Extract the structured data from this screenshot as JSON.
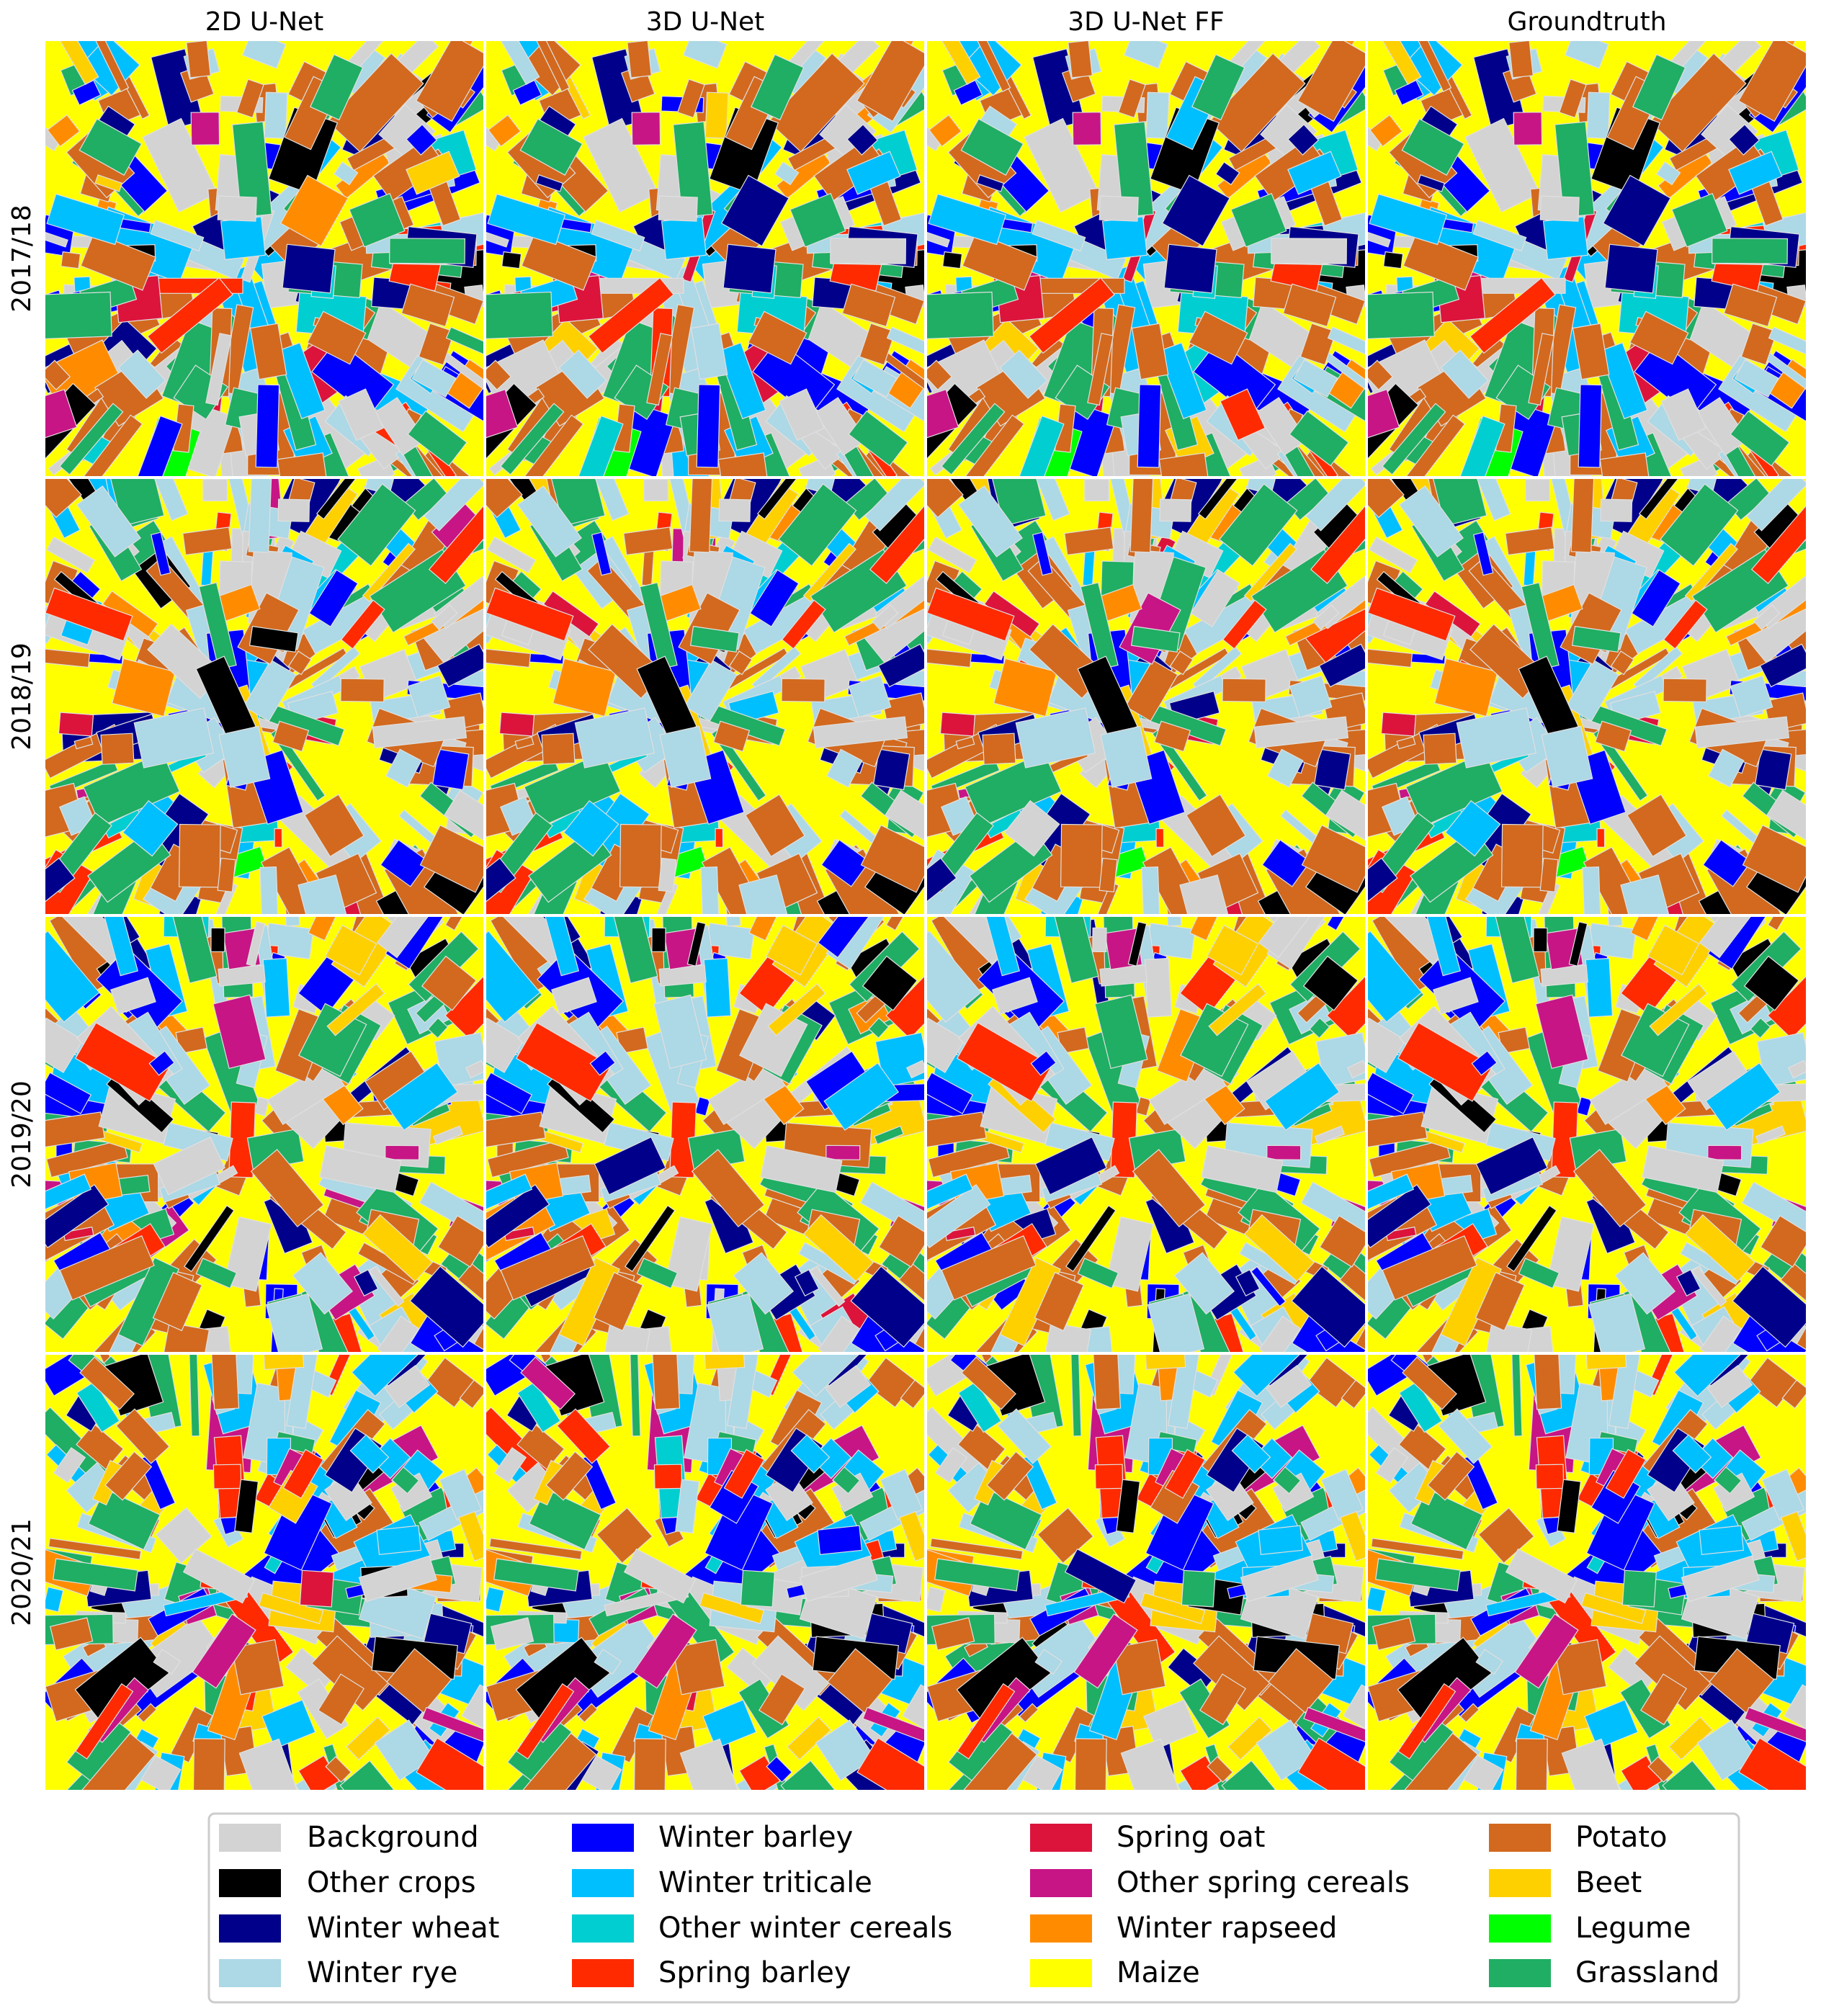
{
  "columns": [
    "2D U-Net",
    "3D U-Net",
    "3D U-Net FF",
    "Groundtruth"
  ],
  "rows": [
    "2017/18",
    "2018/19",
    "2019/20",
    "2020/21"
  ],
  "legend": [
    {
      "label": "Background",
      "color": "#d3d3d3"
    },
    {
      "label": "Other crops",
      "color": "#000000"
    },
    {
      "label": "Winter wheat",
      "color": "#00008b"
    },
    {
      "label": "Winter rye",
      "color": "#add8e6"
    },
    {
      "label": "Winter barley",
      "color": "#0000ff"
    },
    {
      "label": "Winter triticale",
      "color": "#00bfff"
    },
    {
      "label": "Other winter cereals",
      "color": "#00ced1"
    },
    {
      "label": "Spring barley",
      "color": "#ff2a00"
    },
    {
      "label": "Spring oat",
      "color": "#dc143c"
    },
    {
      "label": "Other spring cereals",
      "color": "#c71585"
    },
    {
      "label": "Winter rapseed",
      "color": "#ff8c00"
    },
    {
      "label": "Maize",
      "color": "#ffff00"
    },
    {
      "label": "Potato",
      "color": "#d2691e"
    },
    {
      "label": "Beet",
      "color": "#ffd000"
    },
    {
      "label": "Legume",
      "color": "#00ff00"
    },
    {
      "label": "Grassland",
      "color": "#1fae63"
    }
  ]
}
